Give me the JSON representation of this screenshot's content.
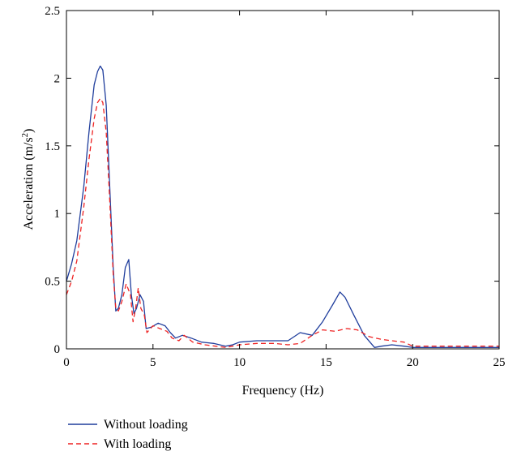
{
  "chart_data": {
    "type": "line",
    "title": "",
    "xlabel": "Frequency (Hz)",
    "ylabel_main": "Acceleration (m/s",
    "ylabel_sup": "2",
    "ylabel_end": ")",
    "xlim": [
      0,
      25
    ],
    "ylim": [
      0,
      2.5
    ],
    "x_ticks": [
      0,
      5,
      10,
      15,
      20,
      25
    ],
    "y_ticks": [
      0,
      0.5,
      1,
      1.5,
      2,
      2.5
    ],
    "grid": false,
    "legend_position": "bottom-left",
    "series": [
      {
        "name": "Without loading",
        "color": "#1f3d9c",
        "style": "solid",
        "x": [
          0,
          0.3,
          0.6,
          1.0,
          1.3,
          1.6,
          1.8,
          1.95,
          2.1,
          2.3,
          2.5,
          2.7,
          2.85,
          3.0,
          3.2,
          3.4,
          3.6,
          3.75,
          3.9,
          4.05,
          4.25,
          4.45,
          4.6,
          4.9,
          5.3,
          5.7,
          6.0,
          6.3,
          6.7,
          7.2,
          7.8,
          8.5,
          9.2,
          9.6,
          10.0,
          11.0,
          12.0,
          12.8,
          13.5,
          14.2,
          14.8,
          15.4,
          15.8,
          16.1,
          16.6,
          17.2,
          17.8,
          18.2,
          18.8,
          19.5,
          20.0,
          21.0,
          23.0,
          25.0
        ],
        "y": [
          0.5,
          0.63,
          0.8,
          1.2,
          1.6,
          1.95,
          2.05,
          2.09,
          2.06,
          1.8,
          1.2,
          0.6,
          0.28,
          0.3,
          0.4,
          0.6,
          0.66,
          0.4,
          0.26,
          0.3,
          0.4,
          0.35,
          0.15,
          0.16,
          0.19,
          0.17,
          0.12,
          0.08,
          0.1,
          0.08,
          0.05,
          0.04,
          0.02,
          0.03,
          0.05,
          0.06,
          0.06,
          0.06,
          0.12,
          0.1,
          0.2,
          0.33,
          0.42,
          0.38,
          0.25,
          0.1,
          0.01,
          0.02,
          0.03,
          0.02,
          0.01,
          0.01,
          0.01,
          0.01
        ]
      },
      {
        "name": "With loading",
        "color": "#ee2222",
        "style": "dashed",
        "x": [
          0,
          0.3,
          0.6,
          1.0,
          1.3,
          1.6,
          1.8,
          1.95,
          2.1,
          2.3,
          2.5,
          2.7,
          2.85,
          3.0,
          3.2,
          3.45,
          3.7,
          3.85,
          4.0,
          4.15,
          4.3,
          4.5,
          4.65,
          5.0,
          5.4,
          5.8,
          6.1,
          6.5,
          6.8,
          7.3,
          8.0,
          8.6,
          9.2,
          10.0,
          11.0,
          12.0,
          12.8,
          13.5,
          14.2,
          14.8,
          15.5,
          16.2,
          16.8,
          17.5,
          18.2,
          18.8,
          19.5,
          20.0,
          21.0,
          23.0,
          25.0
        ],
        "y": [
          0.4,
          0.5,
          0.65,
          1.05,
          1.4,
          1.7,
          1.82,
          1.85,
          1.82,
          1.6,
          1.1,
          0.55,
          0.3,
          0.28,
          0.35,
          0.48,
          0.4,
          0.2,
          0.3,
          0.45,
          0.3,
          0.25,
          0.12,
          0.17,
          0.15,
          0.13,
          0.08,
          0.06,
          0.1,
          0.05,
          0.03,
          0.02,
          0.01,
          0.03,
          0.04,
          0.04,
          0.03,
          0.04,
          0.1,
          0.14,
          0.13,
          0.15,
          0.14,
          0.09,
          0.07,
          0.06,
          0.05,
          0.02,
          0.02,
          0.02,
          0.02
        ]
      }
    ]
  }
}
